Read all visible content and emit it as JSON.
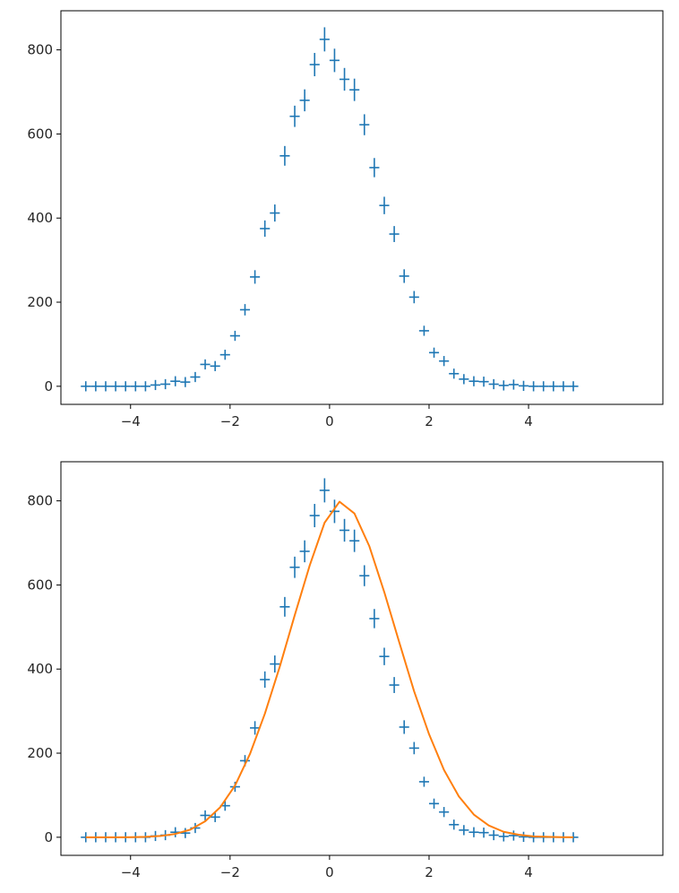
{
  "colors": {
    "data": "#1f77b4",
    "fit": "#ff7f0e",
    "axes": "#000000",
    "text": "#262626"
  },
  "chart_data": [
    {
      "type": "scatter",
      "marker": "errorbar",
      "title": "",
      "xlabel": "",
      "ylabel": "",
      "grid": false,
      "xlim": [
        -5.4,
        6.7
      ],
      "ylim": [
        -43,
        893
      ],
      "xticks": [
        -4,
        -2,
        0,
        2,
        4
      ],
      "xtick_labels": [
        "−4",
        "−2",
        "0",
        "2",
        "4"
      ],
      "yticks": [
        0,
        200,
        400,
        600,
        800
      ],
      "ytick_labels": [
        "0",
        "200",
        "400",
        "600",
        "800"
      ],
      "bin_half_width": 0.1,
      "series": [
        {
          "x": [
            -4.9,
            -4.7,
            -4.5,
            -4.3,
            -4.1,
            -3.9,
            -3.7,
            -3.5,
            -3.3,
            -3.1,
            -2.9,
            -2.7,
            -2.5,
            -2.3,
            -2.1,
            -1.9,
            -1.7,
            -1.5,
            -1.3,
            -1.1,
            -0.9,
            -0.7,
            -0.5,
            -0.3,
            -0.1,
            0.1,
            0.3,
            0.5,
            0.7,
            0.9,
            1.1,
            1.3,
            1.5,
            1.7,
            1.9,
            2.1,
            2.3,
            2.5,
            2.7,
            2.9,
            3.1,
            3.3,
            3.5,
            3.7,
            3.9,
            4.1,
            4.3,
            4.5,
            4.7,
            4.9
          ],
          "y": [
            0,
            0,
            0,
            0,
            0,
            0,
            0,
            3,
            5,
            12,
            10,
            22,
            52,
            48,
            75,
            120,
            182,
            260,
            375,
            412,
            548,
            642,
            680,
            765,
            825,
            775,
            730,
            705,
            622,
            520,
            430,
            362,
            262,
            212,
            132,
            80,
            60,
            30,
            17,
            12,
            11,
            5,
            2,
            4,
            1,
            0,
            0,
            0,
            0,
            0
          ],
          "yerr": [
            1,
            1,
            1,
            1,
            1,
            1,
            1,
            1.7,
            2.2,
            3.5,
            3.2,
            4.7,
            7.2,
            6.9,
            8.7,
            11,
            13.5,
            16.1,
            19.4,
            20.3,
            23.4,
            25.3,
            26.1,
            27.7,
            28.7,
            27.8,
            27,
            26.6,
            24.9,
            22.8,
            20.7,
            19,
            16.2,
            14.6,
            11.5,
            8.9,
            7.7,
            5.5,
            4.1,
            3.5,
            3.3,
            2.2,
            1.4,
            2,
            1,
            1,
            1,
            1,
            1,
            1
          ]
        }
      ]
    },
    {
      "type": "scatter",
      "marker": "errorbar",
      "title": "",
      "xlabel": "",
      "ylabel": "",
      "grid": false,
      "xlim": [
        -5.4,
        6.7
      ],
      "ylim": [
        -43,
        893
      ],
      "xticks": [
        -4,
        -2,
        0,
        2,
        4
      ],
      "xtick_labels": [
        "−4",
        "−2",
        "0",
        "2",
        "4"
      ],
      "yticks": [
        0,
        200,
        400,
        600,
        800
      ],
      "ytick_labels": [
        "0",
        "200",
        "400",
        "600",
        "800"
      ],
      "bin_half_width": 0.1,
      "series": [
        {
          "x": [
            -4.9,
            -4.7,
            -4.5,
            -4.3,
            -4.1,
            -3.9,
            -3.7,
            -3.5,
            -3.3,
            -3.1,
            -2.9,
            -2.7,
            -2.5,
            -2.3,
            -2.1,
            -1.9,
            -1.7,
            -1.5,
            -1.3,
            -1.1,
            -0.9,
            -0.7,
            -0.5,
            -0.3,
            -0.1,
            0.1,
            0.3,
            0.5,
            0.7,
            0.9,
            1.1,
            1.3,
            1.5,
            1.7,
            1.9,
            2.1,
            2.3,
            2.5,
            2.7,
            2.9,
            3.1,
            3.3,
            3.5,
            3.7,
            3.9,
            4.1,
            4.3,
            4.5,
            4.7,
            4.9
          ],
          "y": [
            0,
            0,
            0,
            0,
            0,
            0,
            0,
            3,
            5,
            12,
            10,
            22,
            52,
            48,
            75,
            120,
            182,
            260,
            375,
            412,
            548,
            642,
            680,
            765,
            825,
            775,
            730,
            705,
            622,
            520,
            430,
            362,
            262,
            212,
            132,
            80,
            60,
            30,
            17,
            12,
            11,
            5,
            2,
            4,
            1,
            0,
            0,
            0,
            0,
            0
          ],
          "yerr": [
            1,
            1,
            1,
            1,
            1,
            1,
            1,
            1.7,
            2.2,
            3.5,
            3.2,
            4.7,
            7.2,
            6.9,
            8.7,
            11,
            13.5,
            16.1,
            19.4,
            20.3,
            23.4,
            25.3,
            26.1,
            27.7,
            28.7,
            27.8,
            27,
            26.6,
            24.9,
            22.8,
            20.7,
            19,
            16.2,
            14.6,
            11.5,
            8.9,
            7.7,
            5.5,
            4.1,
            3.5,
            3.3,
            2.2,
            1.4,
            2,
            1,
            1,
            1,
            1,
            1,
            1
          ]
        }
      ],
      "fit": {
        "type": "line",
        "x": [
          -4.9,
          -4.6,
          -4.3,
          -4.0,
          -3.7,
          -3.4,
          -3.1,
          -2.8,
          -2.5,
          -2.2,
          -1.9,
          -1.6,
          -1.3,
          -1.0,
          -0.7,
          -0.4,
          -0.1,
          0.2,
          0.5,
          0.8,
          1.1,
          1.4,
          1.7,
          2.0,
          2.3,
          2.6,
          2.9,
          3.2,
          3.5,
          3.8,
          4.1,
          4.4,
          4.7,
          4.9
        ],
        "y": [
          0,
          0,
          0,
          0.3,
          1,
          3,
          8,
          18,
          38,
          71,
          123,
          198,
          294,
          406,
          528,
          646,
          748,
          798,
          770,
          692,
          583,
          464,
          347,
          245,
          160,
          97,
          54,
          28,
          13,
          6,
          2,
          1,
          0.2,
          0
        ]
      }
    }
  ]
}
